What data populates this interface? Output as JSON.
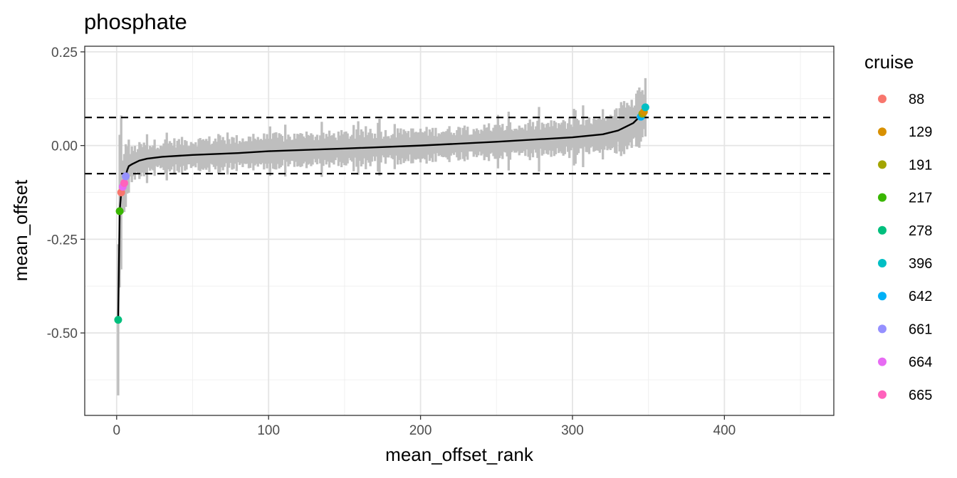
{
  "chart_data": {
    "type": "scatter",
    "title": "phosphate",
    "xlabel": "mean_offset_rank",
    "ylabel": "mean_offset",
    "xlim": [
      -21,
      472
    ],
    "ylim": [
      -0.72,
      0.265
    ],
    "x_ticks": [
      0,
      100,
      200,
      300,
      400
    ],
    "x_tick_labels": [
      "0",
      "100",
      "200",
      "300",
      "400"
    ],
    "y_ticks": [
      0.25,
      0.0,
      -0.25,
      -0.5
    ],
    "y_tick_labels": [
      "0.25",
      "0.00",
      "-0.25",
      "-0.50"
    ],
    "grid": true,
    "theme": "bw",
    "reference_lines": [
      0.075,
      -0.075
    ],
    "reference_line_style": "dashed",
    "n_ranks": 348,
    "line_color": "#000000",
    "band_color": "#bebebe",
    "mean_offset_curve": {
      "x": [
        1,
        2,
        3,
        4,
        5,
        6,
        7,
        8,
        10,
        15,
        20,
        30,
        50,
        80,
        100,
        150,
        200,
        250,
        300,
        320,
        330,
        335,
        340,
        343,
        345,
        346,
        347,
        348
      ],
      "y": [
        -0.465,
        -0.175,
        -0.125,
        -0.11,
        -0.1,
        -0.08,
        -0.065,
        -0.055,
        -0.05,
        -0.04,
        -0.035,
        -0.03,
        -0.025,
        -0.02,
        -0.015,
        -0.008,
        0.0,
        0.01,
        0.022,
        0.03,
        0.04,
        0.05,
        0.06,
        0.072,
        0.077,
        0.085,
        0.09,
        0.102
      ]
    },
    "highlighted_points": [
      {
        "cruise": "278",
        "x": 1,
        "y": -0.465
      },
      {
        "cruise": "217",
        "x": 2,
        "y": -0.175
      },
      {
        "cruise": "88",
        "x": 3,
        "y": -0.125
      },
      {
        "cruise": "664",
        "x": 4,
        "y": -0.11
      },
      {
        "cruise": "665",
        "x": 5,
        "y": -0.1
      },
      {
        "cruise": "661",
        "x": 6,
        "y": -0.082
      },
      {
        "cruise": "642",
        "x": 345,
        "y": 0.077
      },
      {
        "cruise": "191",
        "x": 346,
        "y": 0.085
      },
      {
        "cruise": "129",
        "x": 347,
        "y": 0.09
      },
      {
        "cruise": "396",
        "x": 348,
        "y": 0.102
      }
    ],
    "legend": {
      "title": "cruise",
      "position": "right",
      "entries": [
        {
          "label": "88",
          "color": "#F8766D"
        },
        {
          "label": "129",
          "color": "#D89000"
        },
        {
          "label": "191",
          "color": "#A3A500"
        },
        {
          "label": "217",
          "color": "#39B600"
        },
        {
          "label": "278",
          "color": "#00BF7D"
        },
        {
          "label": "396",
          "color": "#00BFC4"
        },
        {
          "label": "642",
          "color": "#00B0F6"
        },
        {
          "label": "661",
          "color": "#9590FF"
        },
        {
          "label": "664",
          "color": "#E76BF3"
        },
        {
          "label": "665",
          "color": "#FF62BC"
        }
      ]
    }
  }
}
